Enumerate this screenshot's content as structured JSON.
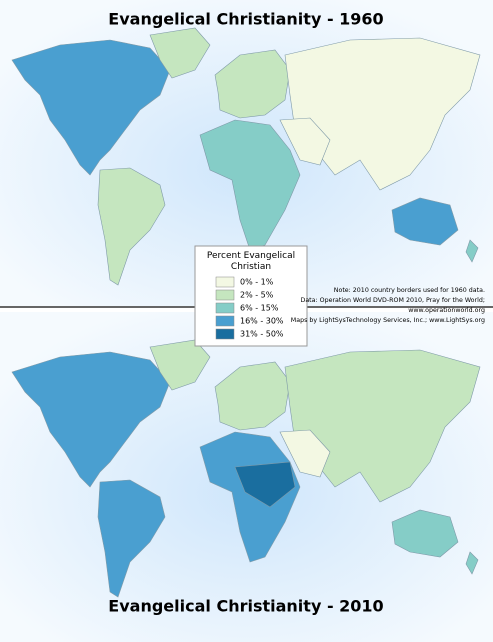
{
  "maps": [
    {
      "title": "Evangelical Christianity - 1960"
    },
    {
      "title": "Evangelical Christianity - 2010"
    }
  ],
  "legend": {
    "title": "Percent Evangelical Christian",
    "items": [
      {
        "label": "0% - 1%",
        "color": "#f3f8e3"
      },
      {
        "label": "2% - 5%",
        "color": "#c5e6bf"
      },
      {
        "label": "6% - 15%",
        "color": "#85cdc7"
      },
      {
        "label": "16% - 30%",
        "color": "#4a9fd0"
      },
      {
        "label": "31% - 50%",
        "color": "#1a6e9f"
      }
    ]
  },
  "notes": [
    "Note: 2010 country borders used for 1960 data.",
    "Data: Operation World DVD-ROM 2010, Pray for the World;",
    "www.operationworld.org",
    "Maps by LightSysTechnology Services, Inc.; www.LightSys.org"
  ]
}
